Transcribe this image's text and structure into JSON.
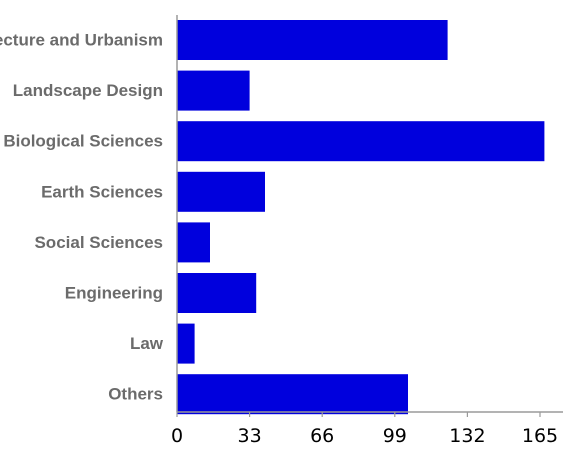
{
  "chart_data": {
    "type": "bar",
    "orientation": "horizontal",
    "categories": [
      "Architecture and Urbanism",
      "Landscape Design",
      "Biological Sciences",
      "Earth Sciences",
      "Social Sciences",
      "Engineering",
      "Law",
      "Others"
    ],
    "values": [
      123,
      33,
      167,
      40,
      15,
      36,
      8,
      105
    ],
    "xlim": [
      0,
      165
    ],
    "xticks": [
      0,
      33,
      66,
      99,
      132,
      165
    ],
    "title": "",
    "xlabel": "",
    "ylabel": "",
    "grid": false,
    "bar_color": "#0000dd",
    "axis_color": "#9a9a9a",
    "label_color": "#6b6b6b"
  }
}
